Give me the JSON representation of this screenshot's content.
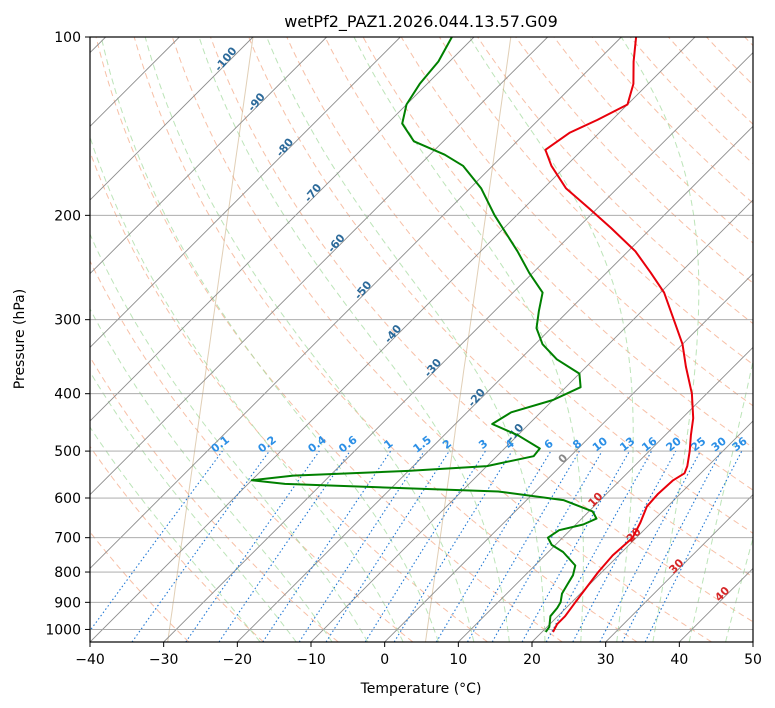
{
  "chart_data": {
    "type": "line",
    "title": "wetPf2_PAZ1.2026.044.13.57.G09",
    "xlabel": "Temperature (°C)",
    "ylabel": "Pressure (hPa)",
    "xlim": [
      -40,
      50
    ],
    "ylim": [
      1050,
      100
    ],
    "y_scale": "log",
    "skew": "skew-T log-p diagram",
    "grid": true,
    "x_ticks": [
      "−40",
      "−30",
      "−20",
      "−10",
      "0",
      "10",
      "20",
      "30",
      "40",
      "50"
    ],
    "y_ticks": [
      "100",
      "200",
      "300",
      "400",
      "500",
      "600",
      "700",
      "800",
      "900",
      "1000"
    ],
    "isotherm_labels": [
      "0",
      "10",
      "20",
      "30",
      "40"
    ],
    "dry_adiabat_labels": [
      "-100",
      "-90",
      "-80",
      "-70",
      "-60",
      "-50",
      "-40",
      "-30",
      "-20",
      "-10"
    ],
    "mixing_ratio_labels": [
      "0.1",
      "0.2",
      "0.4",
      "0.6",
      "1",
      "1.5",
      "2",
      "3",
      "4",
      "6",
      "8",
      "10",
      "13",
      "16",
      "20",
      "25",
      "30",
      "36"
    ],
    "series": [
      {
        "color": "#e8000b",
        "values": [
          [
            1010,
            21.5
          ],
          [
            980,
            21.0
          ],
          [
            950,
            21.0
          ],
          [
            900,
            20.5
          ],
          [
            850,
            20.0
          ],
          [
            800,
            19.5
          ],
          [
            750,
            19.2
          ],
          [
            700,
            19.5
          ],
          [
            660,
            18.5
          ],
          [
            620,
            17.2
          ],
          [
            590,
            17.0
          ],
          [
            560,
            17.2
          ],
          [
            545,
            17.8
          ],
          [
            530,
            17.2
          ],
          [
            500,
            15.5
          ],
          [
            470,
            13.5
          ],
          [
            440,
            11.5
          ],
          [
            400,
            8.0
          ],
          [
            360,
            3.5
          ],
          [
            330,
            0.0
          ],
          [
            300,
            -4.5
          ],
          [
            270,
            -9.5
          ],
          [
            250,
            -14.0
          ],
          [
            230,
            -19.0
          ],
          [
            210,
            -25.5
          ],
          [
            195,
            -31.0
          ],
          [
            180,
            -37.0
          ],
          [
            165,
            -42.0
          ],
          [
            155,
            -45.0
          ],
          [
            145,
            -44.0
          ],
          [
            138,
            -42.0
          ],
          [
            130,
            -40.0
          ],
          [
            120,
            -42.0
          ],
          [
            110,
            -45.0
          ],
          [
            100,
            -48.0
          ]
        ]
      },
      {
        "color": "#008000",
        "values": [
          [
            1010,
            20.5
          ],
          [
            990,
            20.3
          ],
          [
            950,
            19.0
          ],
          [
            920,
            18.8
          ],
          [
            900,
            18.5
          ],
          [
            870,
            17.5
          ],
          [
            840,
            17.0
          ],
          [
            810,
            16.5
          ],
          [
            780,
            15.5
          ],
          [
            740,
            12.0
          ],
          [
            720,
            9.5
          ],
          [
            700,
            8.0
          ],
          [
            680,
            8.5
          ],
          [
            665,
            11.0
          ],
          [
            650,
            12.0
          ],
          [
            632,
            10.5
          ],
          [
            605,
            5.0
          ],
          [
            585,
            -5.0
          ],
          [
            568,
            -35.0
          ],
          [
            560,
            -40.0
          ],
          [
            550,
            -35.0
          ],
          [
            540,
            -20.0
          ],
          [
            530,
            -10.0
          ],
          [
            510,
            -5.0
          ],
          [
            495,
            -5.2
          ],
          [
            470,
            -10.0
          ],
          [
            450,
            -15.0
          ],
          [
            430,
            -14.0
          ],
          [
            410,
            -10.0
          ],
          [
            390,
            -8.0
          ],
          [
            370,
            -10.0
          ],
          [
            350,
            -15.0
          ],
          [
            330,
            -19.0
          ],
          [
            310,
            -22.0
          ],
          [
            290,
            -24.0
          ],
          [
            270,
            -26.0
          ],
          [
            250,
            -30.5
          ],
          [
            230,
            -35.0
          ],
          [
            200,
            -43.0
          ],
          [
            180,
            -48.5
          ],
          [
            165,
            -54.0
          ],
          [
            158,
            -58.0
          ],
          [
            150,
            -64.0
          ],
          [
            140,
            -68.0
          ],
          [
            130,
            -70.0
          ],
          [
            120,
            -71.0
          ],
          [
            110,
            -71.5
          ],
          [
            100,
            -73.0
          ]
        ]
      }
    ]
  }
}
